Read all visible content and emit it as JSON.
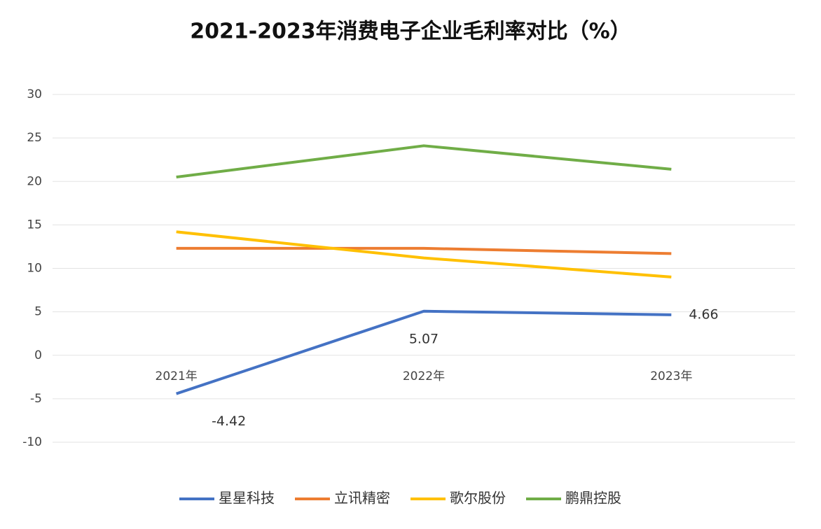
{
  "chart_data": {
    "type": "line",
    "title": "2021-2023年消费电子企业毛利率对比（%）",
    "categories": [
      "2021年",
      "2022年",
      "2023年"
    ],
    "series": [
      {
        "name": "星星科技",
        "color": "#4472c4",
        "values": [
          -4.42,
          5.07,
          4.66
        ],
        "data_labels": true
      },
      {
        "name": "立讯精密",
        "color": "#ed7d31",
        "values": [
          12.3,
          12.3,
          11.7
        ]
      },
      {
        "name": "歌尔股份",
        "color": "#ffc000",
        "values": [
          14.2,
          11.2,
          9.0
        ]
      },
      {
        "name": "鹏鼎控股",
        "color": "#70ad47",
        "values": [
          20.5,
          24.1,
          21.4
        ]
      }
    ],
    "ylim": [
      -10,
      30
    ],
    "yticks": [
      -10,
      -5,
      0,
      5,
      10,
      15,
      20,
      25,
      30
    ],
    "grid": true,
    "legend": "bottom"
  }
}
